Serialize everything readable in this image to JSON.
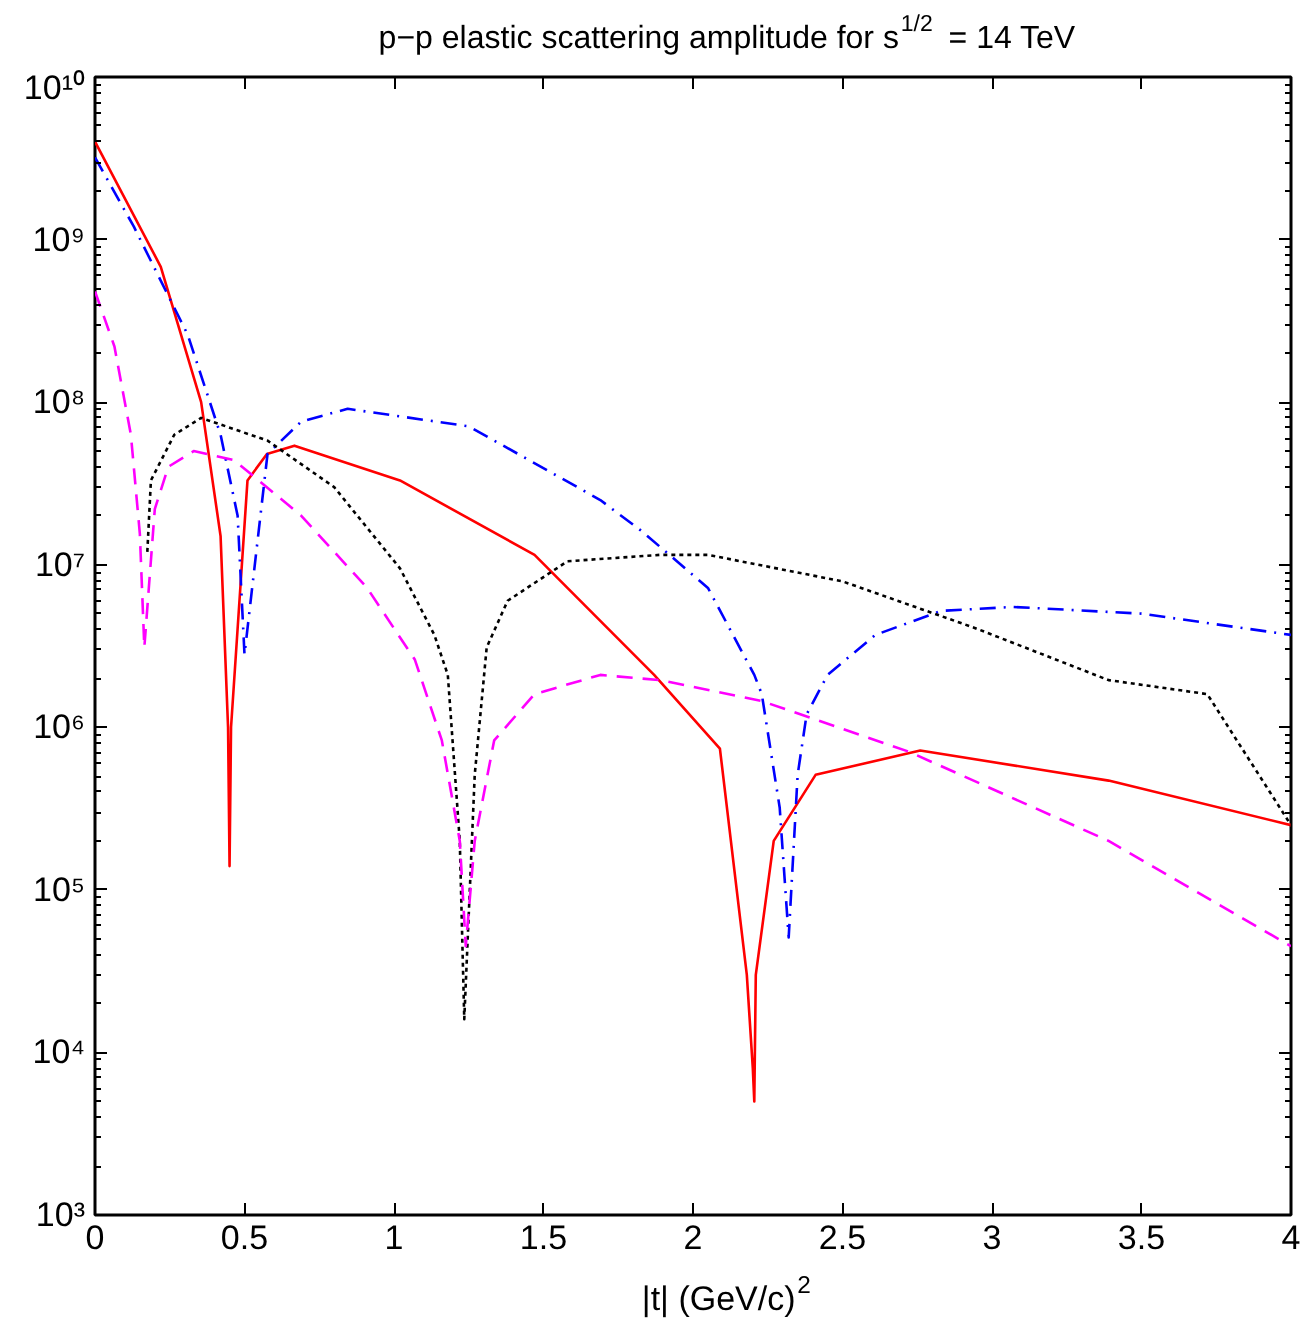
{
  "chart_data": {
    "type": "line",
    "title": "p−p elastic scattering amplitude for s$^{1/2}$ = 14 TeV",
    "xlabel": "|t| (GeV/c)$^{2}$",
    "log": "y",
    "grid": false,
    "marker": "none",
    "xlim": [
      0,
      4
    ],
    "xticks": [
      0,
      0.5,
      1,
      1.5,
      2,
      2.5,
      3,
      3.5,
      4
    ],
    "ylim": [
      1000,
      10000000000
    ],
    "yticks": [
      {
        "value": 1000,
        "label": "10³"
      },
      {
        "value": 10000,
        "label": "10⁴"
      },
      {
        "value": 100000,
        "label": "10⁵"
      },
      {
        "value": 1000000,
        "label": "10⁶"
      },
      {
        "value": 10000000,
        "label": "10⁷"
      },
      {
        "value": 100000000,
        "label": "10⁸"
      },
      {
        "value": 1000000000,
        "label": "10⁹"
      },
      {
        "value": 10000000000,
        "label": "10¹⁰"
      }
    ],
    "series": [
      {
        "color": "#ff0000",
        "line_style": "solid",
        "x": [
          0,
          0.22,
          0.355,
          0.42,
          0.445,
          0.45,
          0.455,
          0.51,
          0.575,
          0.667,
          1.02,
          1.47,
          1.87,
          2.09,
          2.18,
          2.2,
          2.205,
          2.21,
          2.27,
          2.41,
          2.76,
          3.39,
          4.0
        ],
        "values": [
          4000000000.0,
          680000000.0,
          100000000.0,
          15000000.0,
          1000000.0,
          140000.0,
          1000000.0,
          33000000.0,
          48000000.0,
          54000000.0,
          33000000.0,
          11500000.0,
          2100000.0,
          740000.0,
          30000.0,
          8000.0,
          5000.0,
          30000.0,
          200000.0,
          510000.0,
          720000.0,
          470000.0,
          250000.0
        ]
      },
      {
        "color": "#0000ff",
        "line_style": "dashdot",
        "x": [
          0,
          0.13,
          0.31,
          0.42,
          0.477,
          0.5,
          0.577,
          0.69,
          0.845,
          1.25,
          1.69,
          1.83,
          2.05,
          2.205,
          2.23,
          2.29,
          2.32,
          2.35,
          2.38,
          2.45,
          2.61,
          2.83,
          3.07,
          3.5,
          4.0
        ],
        "values": [
          3200000000.0,
          1200000000.0,
          260000000.0,
          63000000.0,
          20000000.0,
          2800000.0,
          48000000.0,
          76000000.0,
          91000000.0,
          71000000.0,
          25000000.0,
          16000000.0,
          7200000.0,
          2100000.0,
          1600000.0,
          320000.0,
          51000.0,
          510000.0,
          1200000.0,
          2100000.0,
          3700000.0,
          5200000.0,
          5500000.0,
          5000000.0,
          3700000.0
        ]
      },
      {
        "color": "#000000",
        "line_style": "dotted",
        "x": [
          0.175,
          0.187,
          0.265,
          0.355,
          0.577,
          0.8,
          1.02,
          1.135,
          1.18,
          1.22,
          1.235,
          1.27,
          1.31,
          1.38,
          1.58,
          1.89,
          2.05,
          2.5,
          2.94,
          3.39,
          3.72,
          4.0
        ],
        "values": [
          12000000.0,
          33000000.0,
          63000000.0,
          80000000.0,
          58000000.0,
          30000000.0,
          9500000.0,
          3700000.0,
          2100000.0,
          200000.0,
          16000.0,
          510000.0,
          3100000.0,
          6000000.0,
          10500000.0,
          11500000.0,
          11500000.0,
          7900000.0,
          4100000.0,
          1950000.0,
          1600000.0,
          250000.0
        ]
      },
      {
        "color": "#ff00ff",
        "line_style": "dashed",
        "x": [
          0,
          0.065,
          0.12,
          0.15,
          0.165,
          0.2,
          0.245,
          0.33,
          0.465,
          0.69,
          0.91,
          1.07,
          1.16,
          1.22,
          1.24,
          1.27,
          1.335,
          1.47,
          1.69,
          1.89,
          2.23,
          2.72,
          3.39,
          4.0
        ],
        "values": [
          480000000.0,
          220000000.0,
          63000000.0,
          15500000.0,
          3100000.0,
          22000000.0,
          40000000.0,
          50000000.0,
          44000000.0,
          20000000.0,
          7200000.0,
          2600000.0,
          830000.0,
          200000.0,
          45000.0,
          200000.0,
          830000.0,
          1600000.0,
          2100000.0,
          1950000.0,
          1450000.0,
          710000.0,
          200000.0,
          45000.0
        ]
      }
    ]
  }
}
